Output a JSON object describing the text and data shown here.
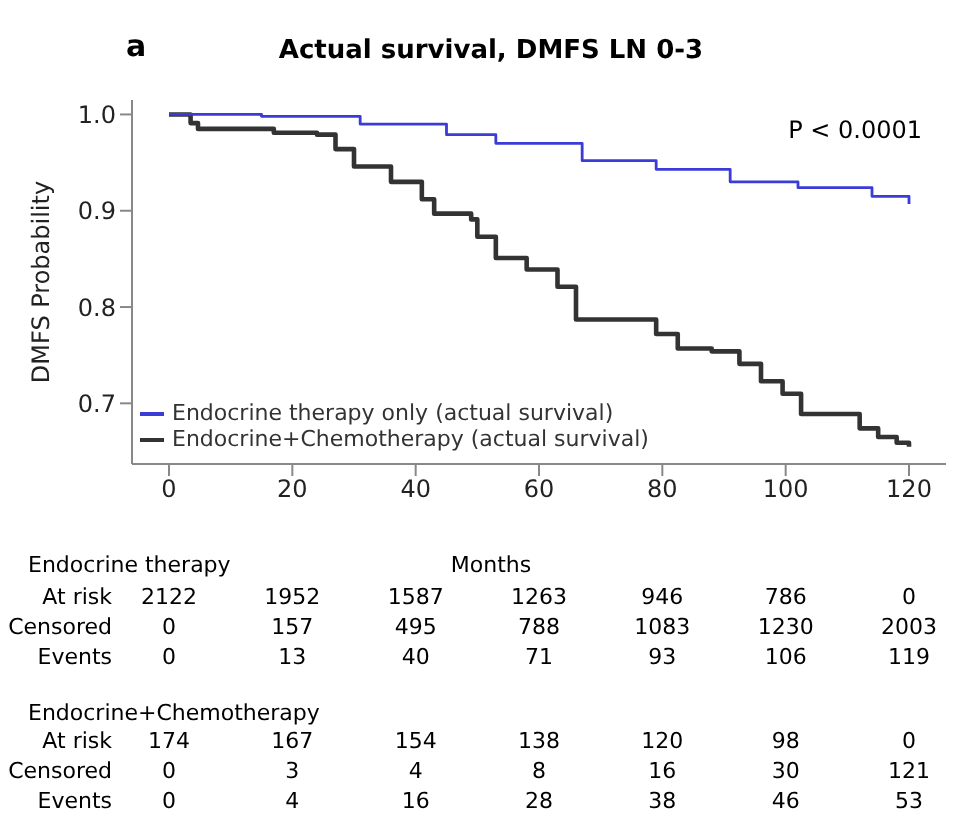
{
  "chart_data": {
    "type": "step",
    "title": "Actual survival, DMFS LN 0-3",
    "xlabel": "Months",
    "ylabel": "DMFS Probability",
    "xlim": [
      -6,
      126
    ],
    "xticks": [
      0,
      20,
      40,
      60,
      80,
      100,
      120
    ],
    "ylim": [
      0.637,
      1.015
    ],
    "yticks": [
      {
        "value": 0.7,
        "label": "0.7"
      },
      {
        "value": 0.8,
        "label": "0.8"
      },
      {
        "value": 0.9,
        "label": "0.9"
      },
      {
        "value": 1,
        "label": "1.0"
      }
    ],
    "grid": false,
    "legend": "bottom left",
    "marker": "none",
    "line_style": "solid",
    "series": [
      {
        "name": "Endocrine therapy only (actual survival)",
        "color": "#3b3bd6",
        "x": [
          0,
          15,
          31,
          45,
          53,
          67,
          79,
          91,
          102,
          114,
          120
        ],
        "values": [
          1,
          0.998,
          0.99,
          0.979,
          0.97,
          0.952,
          0.943,
          0.93,
          0.924,
          0.915,
          0.907
        ]
      },
      {
        "name": "Endocrine+Chemotherapy (actual survival)",
        "color": "#333333",
        "x": [
          0,
          3.5,
          4.7,
          17,
          24,
          27,
          30,
          36,
          41,
          43,
          49,
          50,
          53,
          58,
          63,
          66,
          75.6,
          79,
          82.5,
          88,
          92.5,
          96,
          99.5,
          102.5,
          112,
          115,
          118,
          120
        ],
        "values": [
          1,
          0.991,
          0.985,
          0.981,
          0.979,
          0.964,
          0.946,
          0.93,
          0.912,
          0.897,
          0.891,
          0.873,
          0.851,
          0.839,
          0.821,
          0.787,
          0.787,
          0.772,
          0.757,
          0.754,
          0.741,
          0.723,
          0.71,
          0.689,
          0.674,
          0.665,
          0.659,
          0.655
        ]
      }
    ],
    "annotations": [
      "a",
      "P < 0.0001",
      "Endocrine therapy",
      "At risk",
      "2122",
      "1952",
      "1587",
      "1263",
      "946",
      "786",
      "0",
      "Censored",
      "0",
      "157",
      "495",
      "788",
      "1083",
      "1230",
      "2003",
      "Events",
      "0",
      "13",
      "40",
      "71",
      "93",
      "106",
      "119",
      "Endocrine+Chemotherapy",
      "At risk",
      "174",
      "167",
      "154",
      "138",
      "120",
      "98",
      "0",
      "Censored",
      "0",
      "3",
      "4",
      "8",
      "16",
      "30",
      "121",
      "Events",
      "0",
      "4",
      "16",
      "28",
      "38",
      "46",
      "53"
    ]
  }
}
